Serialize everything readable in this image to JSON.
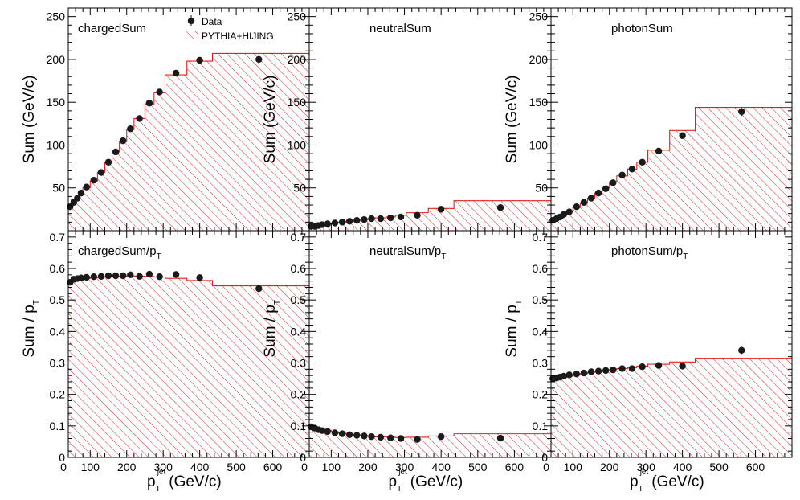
{
  "chart_data": [
    {
      "type": "line",
      "title": "chargedSum",
      "ylabel": "Sum (GeV/c)",
      "xlim": [
        40,
        700
      ],
      "ylim": [
        0,
        260
      ],
      "yticks_labeled": [
        50,
        100,
        150,
        200,
        250
      ],
      "data_points": {
        "name": "Data",
        "x": [
          45,
          55,
          65,
          75,
          90,
          110,
          130,
          150,
          170,
          190,
          210,
          235,
          262,
          290,
          335,
          400,
          562
        ],
        "y": [
          28,
          33,
          38,
          44,
          51,
          59,
          68,
          80,
          92,
          105,
          119,
          131,
          149,
          162,
          184,
          199,
          200
        ],
        "yerr": [
          2,
          2,
          2,
          2,
          2,
          2,
          2,
          2,
          2,
          2,
          2,
          2,
          2,
          2,
          2,
          3,
          5
        ]
      },
      "mc_histogram": {
        "name": "PYTHIA+HIJING",
        "edges": [
          40,
          50,
          60,
          70,
          80,
          100,
          120,
          140,
          160,
          180,
          200,
          220,
          250,
          275,
          305,
          365,
          435,
          700
        ],
        "values": [
          27,
          32,
          38,
          43,
          50,
          58,
          68,
          80,
          92,
          104,
          118,
          131,
          148,
          161,
          182,
          198,
          207
        ]
      }
    },
    {
      "type": "line",
      "title": "neutralSum",
      "ylabel": "Sum (GeV/c)",
      "xlim": [
        40,
        700
      ],
      "ylim": [
        0,
        260
      ],
      "yticks_labeled": [
        50,
        100,
        150,
        200,
        250
      ],
      "data_points": {
        "name": "Data",
        "x": [
          45,
          55,
          65,
          75,
          90,
          110,
          130,
          150,
          170,
          190,
          210,
          235,
          262,
          290,
          335,
          400,
          562
        ],
        "y": [
          5,
          5,
          6,
          7,
          8,
          9,
          10,
          11,
          12,
          13,
          14,
          14,
          15,
          16,
          18,
          25,
          27
        ],
        "yerr": [
          1,
          1,
          1,
          1,
          1,
          1,
          1,
          1,
          1,
          1,
          1,
          1,
          1,
          1,
          1,
          2,
          3
        ]
      },
      "mc_histogram": {
        "name": "PYTHIA+HIJING",
        "edges": [
          40,
          50,
          60,
          70,
          80,
          100,
          120,
          140,
          160,
          180,
          200,
          220,
          250,
          275,
          305,
          365,
          435,
          700
        ],
        "values": [
          4,
          5,
          6,
          7,
          8,
          9,
          10,
          11,
          12,
          13,
          14,
          15,
          16,
          18,
          21,
          26,
          35
        ]
      }
    },
    {
      "type": "line",
      "title": "photonSum",
      "ylabel": "Sum (GeV/c)",
      "xlim": [
        40,
        700
      ],
      "ylim": [
        0,
        260
      ],
      "yticks_labeled": [
        50,
        100,
        150,
        200,
        250
      ],
      "data_points": {
        "name": "Data",
        "x": [
          45,
          55,
          65,
          75,
          90,
          110,
          130,
          150,
          170,
          190,
          210,
          235,
          262,
          290,
          335,
          400,
          562
        ],
        "y": [
          12,
          14,
          16,
          19,
          22,
          28,
          33,
          38,
          44,
          49,
          56,
          65,
          72,
          80,
          93,
          111,
          139
        ],
        "yerr": [
          1,
          1,
          1,
          1,
          1,
          1,
          1,
          1,
          1,
          1,
          1,
          1,
          1,
          2,
          2,
          3,
          5
        ]
      },
      "mc_histogram": {
        "name": "PYTHIA+HIJING",
        "edges": [
          40,
          50,
          60,
          70,
          80,
          100,
          120,
          140,
          160,
          180,
          200,
          220,
          250,
          275,
          305,
          365,
          435,
          700
        ],
        "values": [
          11,
          13,
          15,
          18,
          22,
          27,
          32,
          38,
          44,
          50,
          57,
          64,
          72,
          80,
          94,
          117,
          144
        ]
      }
    },
    {
      "type": "line",
      "title": "chargedSum/p",
      "title_sub": "T",
      "ylabel": "Sum / p",
      "ylabel_sub": "T",
      "xlabel": "p",
      "xlabel_sub": "T",
      "xlabel_sup": "jet",
      "xlabel_unit": "(GeV/c)",
      "xlim": [
        40,
        700
      ],
      "ylim": [
        0,
        0.72
      ],
      "xticks_labeled": [
        100,
        200,
        300,
        400,
        500,
        600
      ],
      "yticks_labeled": [
        0,
        0.1,
        0.2,
        0.3,
        0.4,
        0.5,
        0.6,
        0.7
      ],
      "data_points": {
        "name": "Data",
        "x": [
          45,
          55,
          65,
          75,
          90,
          110,
          130,
          150,
          170,
          190,
          210,
          235,
          262,
          290,
          335,
          400,
          562
        ],
        "y": [
          0.556,
          0.566,
          0.568,
          0.57,
          0.572,
          0.574,
          0.575,
          0.577,
          0.577,
          0.577,
          0.58,
          0.575,
          0.582,
          0.574,
          0.581,
          0.571,
          0.536
        ],
        "yerr": [
          0.006,
          0.005,
          0.005,
          0.004,
          0.004,
          0.004,
          0.004,
          0.004,
          0.004,
          0.004,
          0.004,
          0.004,
          0.004,
          0.004,
          0.005,
          0.006,
          0.012
        ]
      },
      "mc_histogram": {
        "name": "PYTHIA+HIJING",
        "edges": [
          40,
          50,
          60,
          70,
          80,
          100,
          120,
          140,
          160,
          180,
          200,
          220,
          250,
          275,
          305,
          365,
          435,
          700
        ],
        "values": [
          0.548,
          0.557,
          0.562,
          0.565,
          0.568,
          0.571,
          0.573,
          0.574,
          0.575,
          0.576,
          0.577,
          0.576,
          0.575,
          0.573,
          0.569,
          0.562,
          0.545
        ]
      }
    },
    {
      "type": "line",
      "title": "neutralSum/p",
      "title_sub": "T",
      "ylabel": "Sum / p",
      "ylabel_sub": "T",
      "xlabel": "p",
      "xlabel_sub": "T",
      "xlabel_sup": "jet",
      "xlabel_unit": "(GeV/c)",
      "xlim": [
        40,
        700
      ],
      "ylim": [
        0,
        0.72
      ],
      "xticks_labeled": [
        100,
        200,
        300,
        400,
        500,
        600
      ],
      "yticks_labeled": [
        0,
        0.1,
        0.2,
        0.3,
        0.4,
        0.5,
        0.6,
        0.7
      ],
      "data_points": {
        "name": "Data",
        "x": [
          45,
          55,
          65,
          75,
          90,
          110,
          130,
          150,
          170,
          190,
          210,
          235,
          262,
          290,
          335,
          400,
          562
        ],
        "y": [
          0.097,
          0.093,
          0.088,
          0.085,
          0.082,
          0.078,
          0.075,
          0.072,
          0.07,
          0.068,
          0.066,
          0.064,
          0.062,
          0.06,
          0.057,
          0.066,
          0.061
        ],
        "yerr": [
          0.004,
          0.004,
          0.003,
          0.003,
          0.003,
          0.003,
          0.003,
          0.003,
          0.003,
          0.003,
          0.003,
          0.003,
          0.003,
          0.003,
          0.003,
          0.005,
          0.008
        ]
      },
      "mc_histogram": {
        "name": "PYTHIA+HIJING",
        "edges": [
          40,
          50,
          60,
          70,
          80,
          100,
          120,
          140,
          160,
          180,
          200,
          220,
          250,
          275,
          305,
          365,
          435,
          700
        ],
        "values": [
          0.105,
          0.1,
          0.095,
          0.09,
          0.086,
          0.081,
          0.077,
          0.074,
          0.071,
          0.069,
          0.067,
          0.065,
          0.064,
          0.063,
          0.064,
          0.068,
          0.075
        ]
      }
    },
    {
      "type": "line",
      "title": "photonSum/p",
      "title_sub": "T",
      "ylabel": "Sum / p",
      "ylabel_sub": "T",
      "xlabel": "p",
      "xlabel_sub": "T",
      "xlabel_sup": "jet",
      "xlabel_unit": "(GeV/c)",
      "xlim": [
        40,
        700
      ],
      "ylim": [
        0,
        0.72
      ],
      "xticks_labeled": [
        100,
        200,
        300,
        400,
        500,
        600
      ],
      "yticks_labeled": [
        0,
        0.1,
        0.2,
        0.3,
        0.4,
        0.5,
        0.6,
        0.7
      ],
      "data_points": {
        "name": "Data",
        "x": [
          45,
          55,
          65,
          75,
          90,
          110,
          130,
          150,
          170,
          190,
          210,
          235,
          262,
          290,
          335,
          400,
          562
        ],
        "y": [
          0.25,
          0.252,
          0.255,
          0.258,
          0.262,
          0.265,
          0.268,
          0.272,
          0.274,
          0.276,
          0.278,
          0.282,
          0.282,
          0.288,
          0.292,
          0.29,
          0.34
        ],
        "yerr": [
          0.004,
          0.004,
          0.004,
          0.004,
          0.004,
          0.004,
          0.004,
          0.004,
          0.004,
          0.004,
          0.004,
          0.004,
          0.004,
          0.005,
          0.005,
          0.007,
          0.012
        ]
      },
      "mc_histogram": {
        "name": "PYTHIA+HIJING",
        "edges": [
          40,
          50,
          60,
          70,
          80,
          100,
          120,
          140,
          160,
          180,
          200,
          220,
          250,
          275,
          305,
          365,
          435,
          700
        ],
        "values": [
          0.24,
          0.245,
          0.25,
          0.254,
          0.258,
          0.262,
          0.266,
          0.27,
          0.273,
          0.276,
          0.279,
          0.282,
          0.285,
          0.29,
          0.296,
          0.303,
          0.315
        ]
      }
    }
  ],
  "legend": {
    "placement": "top-left of first panel",
    "entries": [
      {
        "label": "Data",
        "marker": "filled-circle-with-errorbar"
      },
      {
        "label": "PYTHIA+HIJING",
        "marker": "red-hatched-box"
      }
    ]
  },
  "colors": {
    "data_marker": "#1a1a1a",
    "mc_line": "#e02020",
    "mc_hatch": "#cc2a2a",
    "axis": "#000000",
    "background": "#ffffff"
  }
}
